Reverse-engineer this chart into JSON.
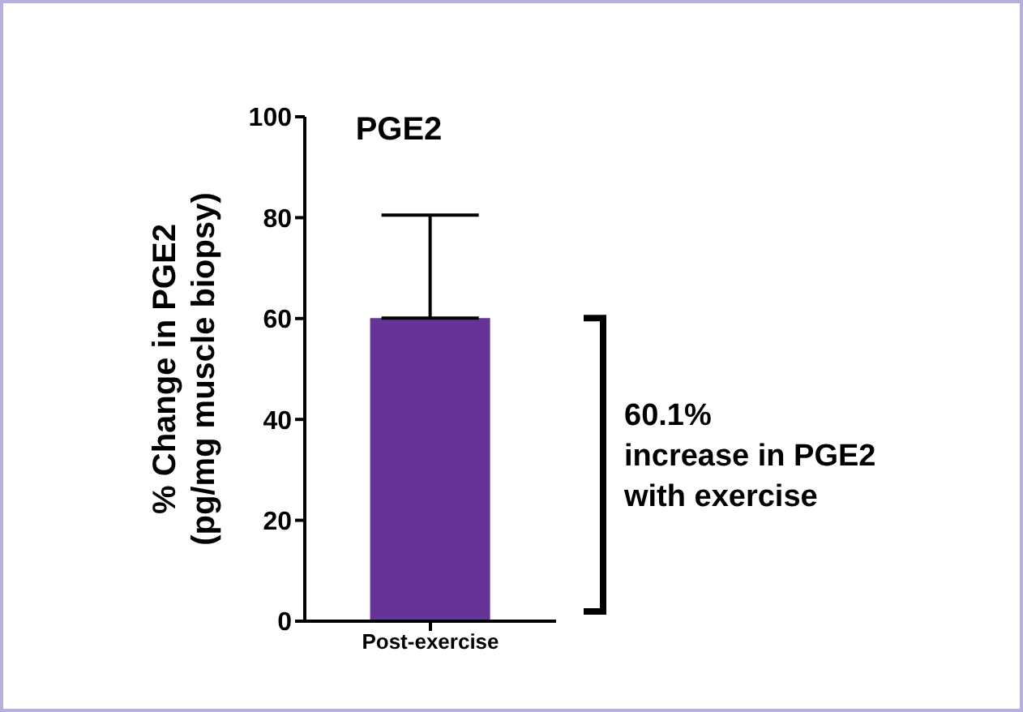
{
  "chart_data": {
    "type": "bar",
    "title": "PGE2",
    "ylabel": "% Change in PGE2\n(pg/mg muscle biopsy)",
    "categories": [
      "Post-exercise"
    ],
    "values": [
      60.1
    ],
    "errors": [
      [
        60.1,
        80.5
      ]
    ],
    "color": "#663399",
    "ylim": [
      0,
      100
    ],
    "yticks": [
      0,
      20,
      40,
      60,
      80,
      100
    ],
    "legend": false,
    "annotations": [
      "60.1%\nincrease in PGE2\nwith exercise"
    ]
  }
}
